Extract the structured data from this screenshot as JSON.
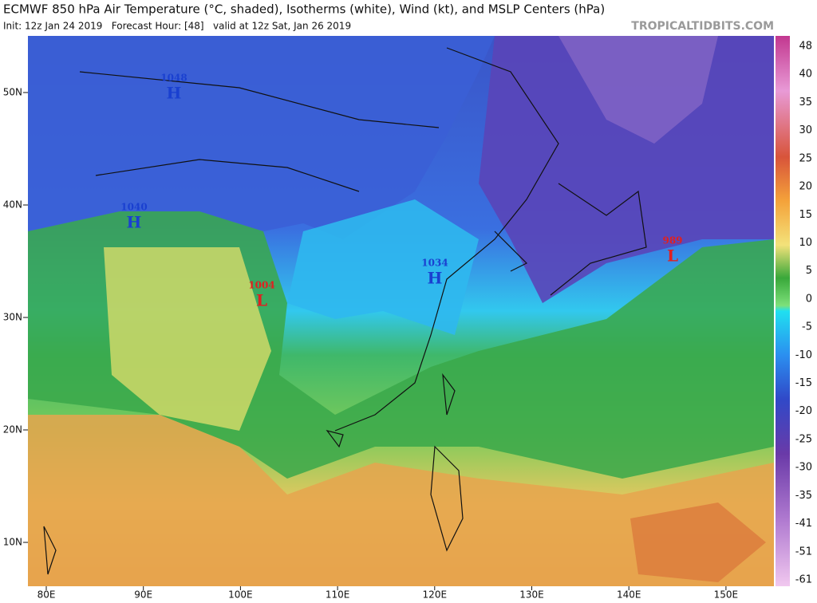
{
  "header": {
    "title": "ECMWF 850 hPa Air Temperature (°C, shaded), Isotherms (white), Wind (kt), and MSLP Centers (hPa)",
    "subtitle": "Init: 12z Jan 24 2019   Forecast Hour: [48]   valid at 12z Sat, Jan 26 2019",
    "credit": "TROPICALTIDBITS.COM"
  },
  "map": {
    "lat_labels": [
      "50N",
      "40N",
      "30N",
      "20N",
      "10N"
    ],
    "lon_labels": [
      "80E",
      "90E",
      "100E",
      "110E",
      "120E",
      "130E",
      "140E",
      "150E"
    ],
    "centers": [
      {
        "pressure": "1048",
        "kind": "H"
      },
      {
        "pressure": "1040",
        "kind": "H"
      },
      {
        "pressure": "1004",
        "kind": "L"
      },
      {
        "pressure": "1034",
        "kind": "H"
      },
      {
        "pressure": "989",
        "kind": "L"
      }
    ]
  },
  "colorbar": {
    "labels": [
      "48",
      "40",
      "35",
      "30",
      "25",
      "20",
      "15",
      "10",
      "5",
      "0",
      "-5",
      "-10",
      "-15",
      "-20",
      "-25",
      "-30",
      "-35",
      "-41",
      "-51",
      "-61"
    ]
  }
}
